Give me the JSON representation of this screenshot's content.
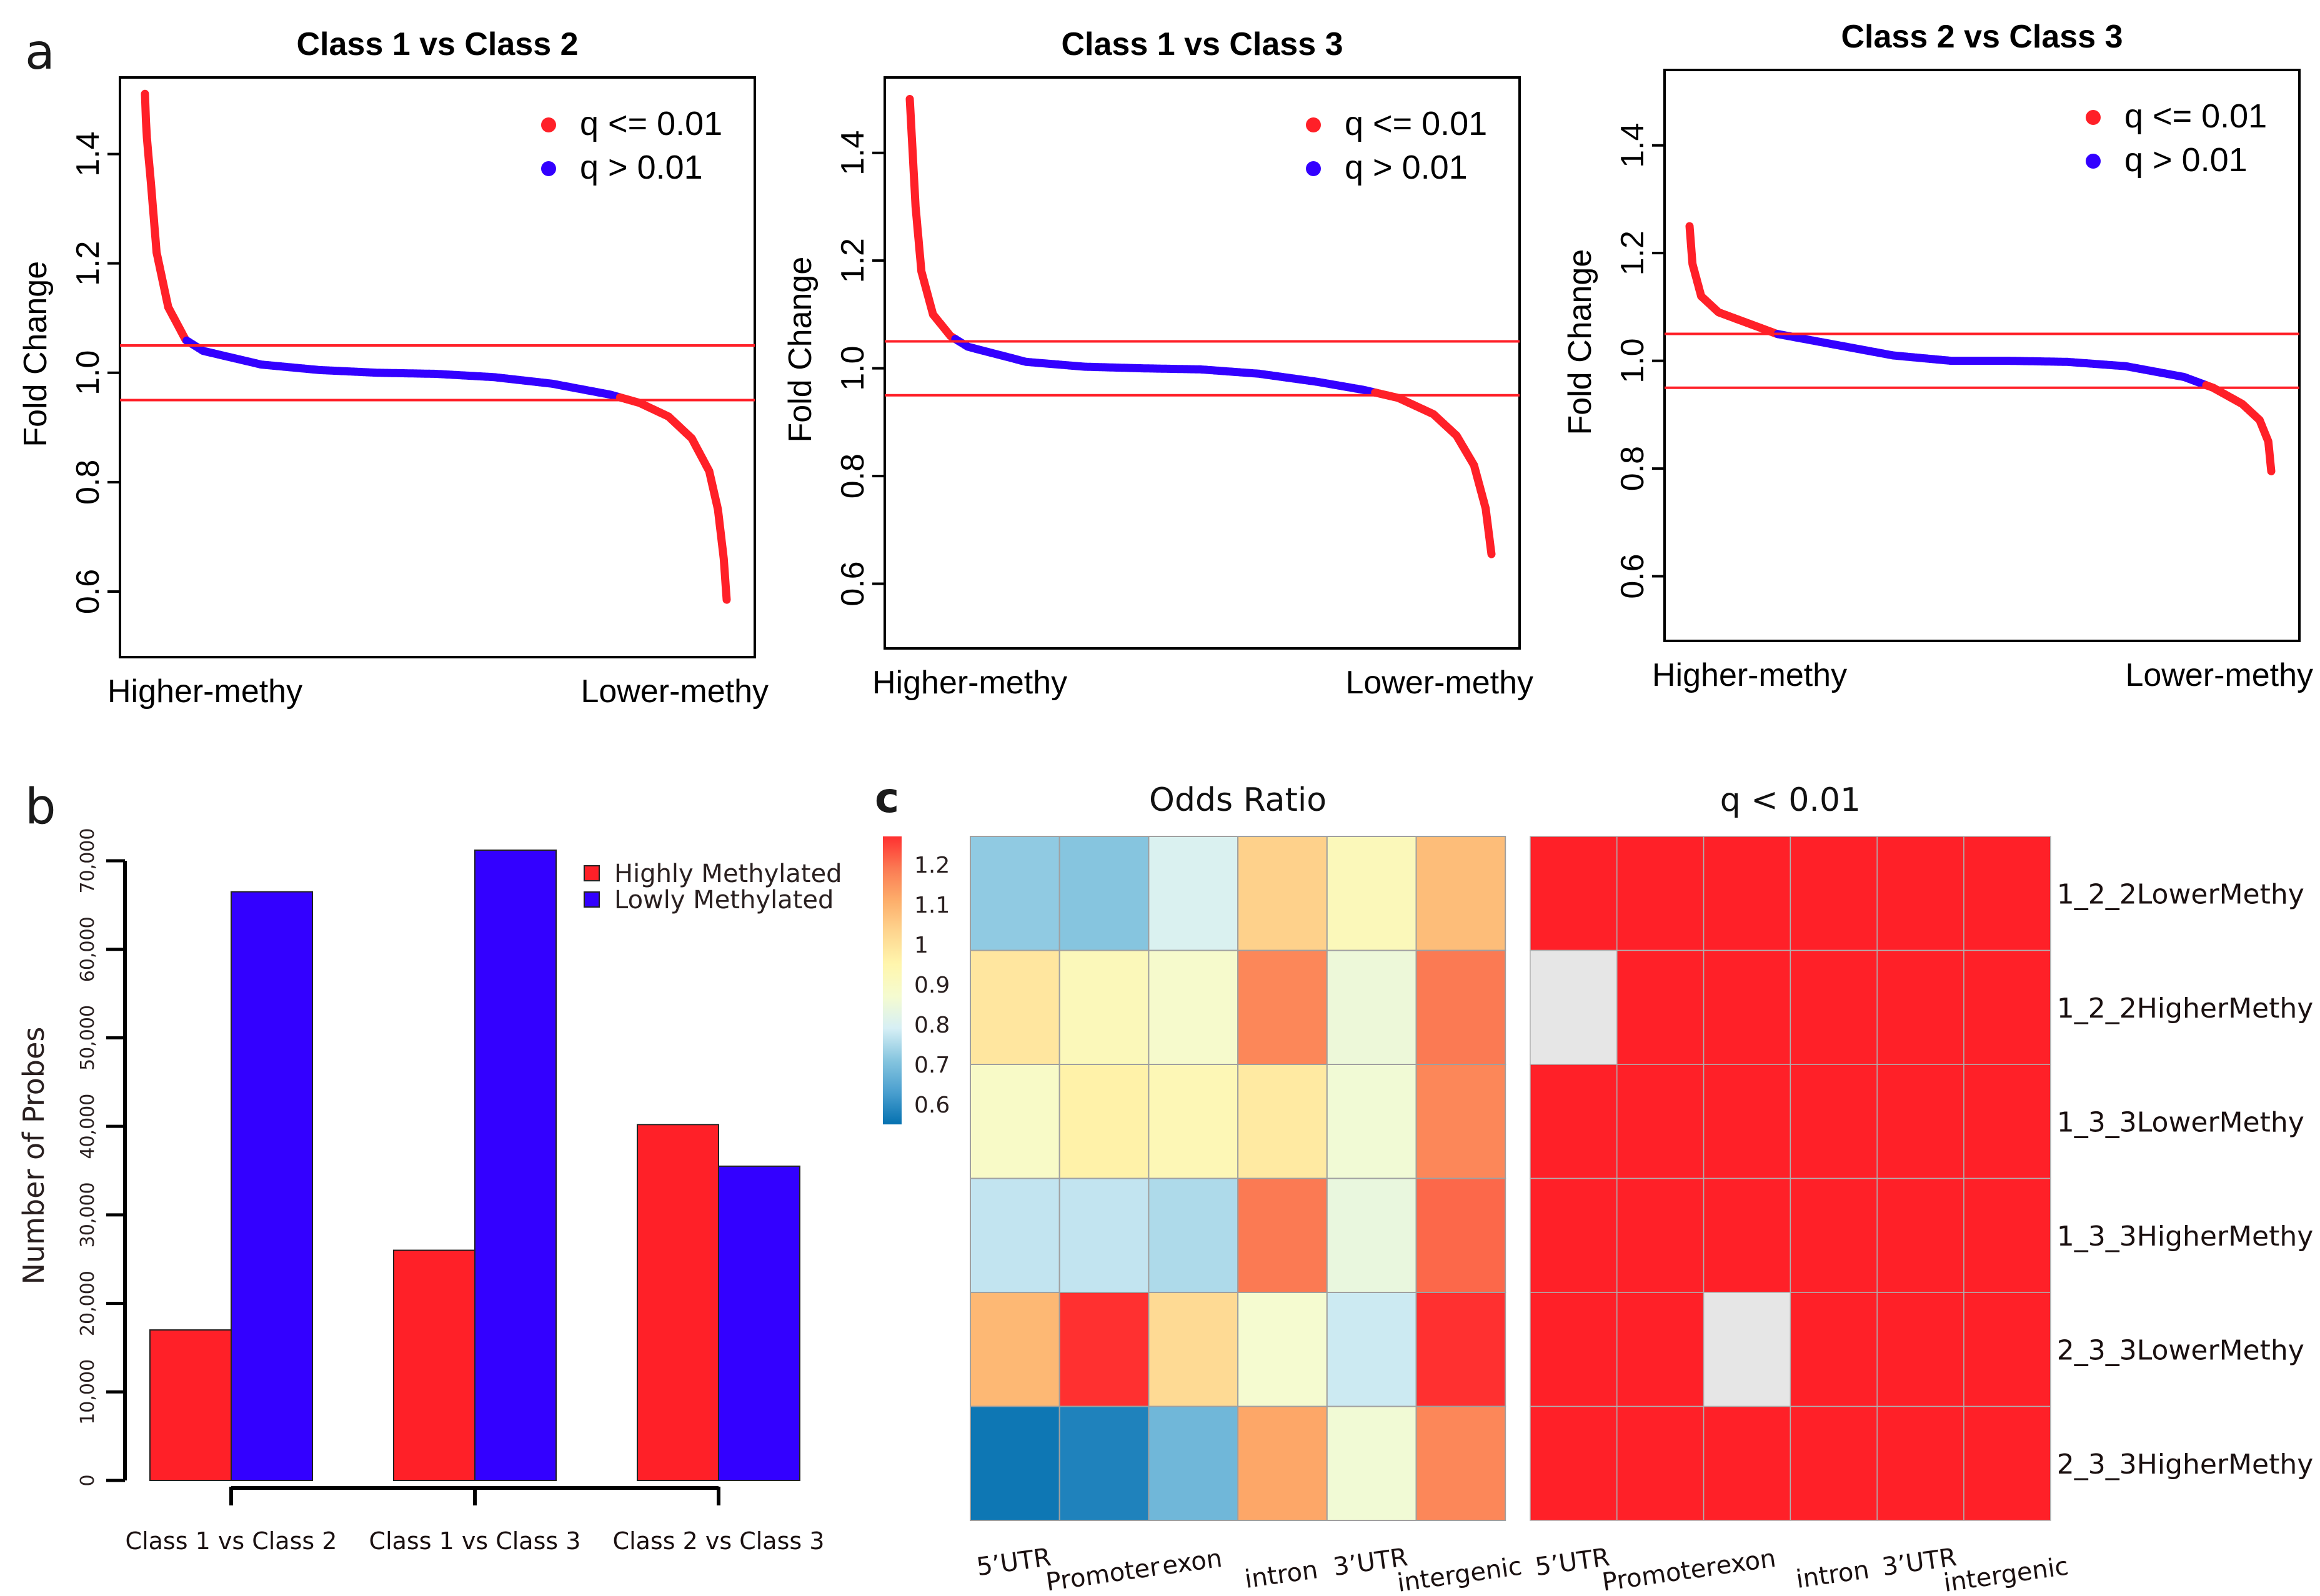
{
  "figure": {
    "panel_labels": {
      "a": "a",
      "b": "b",
      "c": "c"
    }
  },
  "chart_data": [
    {
      "id": "a1",
      "type": "scatter",
      "title": "Class 1 vs Class 2",
      "xlabel": "",
      "ylabel": "Fold Change",
      "x_tick_labels": [
        "Higher-methy",
        "Lower-methy"
      ],
      "y_ticks": [
        0.6,
        0.8,
        1.0,
        1.2,
        1.4
      ],
      "y_tick_labels": [
        "0.6",
        "0.8",
        "1.0",
        "1.2",
        "1.4"
      ],
      "ylim": [
        0.48,
        1.54
      ],
      "reference_lines": [
        1.05,
        0.95
      ],
      "legend": [
        {
          "label": "q <= 0.01",
          "color": "#ff2028"
        },
        {
          "label": "q > 0.01",
          "color": "#3300ff"
        }
      ],
      "legend_position": "top-right",
      "curve": {
        "description": "sorted fold change, higher-methy to lower-methy",
        "points": [
          [
            0.0,
            1.51
          ],
          [
            0.002,
            1.45
          ],
          [
            0.004,
            1.42
          ],
          [
            0.01,
            1.35
          ],
          [
            0.02,
            1.22
          ],
          [
            0.04,
            1.12
          ],
          [
            0.07,
            1.06
          ],
          [
            0.1,
            1.04
          ],
          [
            0.2,
            1.015
          ],
          [
            0.3,
            1.005
          ],
          [
            0.4,
            1.0
          ],
          [
            0.5,
            0.998
          ],
          [
            0.6,
            0.992
          ],
          [
            0.7,
            0.98
          ],
          [
            0.8,
            0.96
          ],
          [
            0.85,
            0.945
          ],
          [
            0.9,
            0.92
          ],
          [
            0.94,
            0.88
          ],
          [
            0.97,
            0.82
          ],
          [
            0.985,
            0.75
          ],
          [
            0.995,
            0.66
          ],
          [
            1.0,
            0.585
          ]
        ],
        "insignificant_range": [
          1.06,
          0.955
        ]
      }
    },
    {
      "id": "a2",
      "type": "scatter",
      "title": "Class 1 vs Class 3",
      "xlabel": "",
      "ylabel": "Fold Change",
      "x_tick_labels": [
        "Higher-methy",
        "Lower-methy"
      ],
      "y_ticks": [
        0.6,
        0.8,
        1.0,
        1.2,
        1.4
      ],
      "y_tick_labels": [
        "0.6",
        "0.8",
        "1.0",
        "1.2",
        "1.4"
      ],
      "ylim": [
        0.48,
        1.54
      ],
      "reference_lines": [
        1.05,
        0.95
      ],
      "legend": [
        {
          "label": "q <= 0.01",
          "color": "#ff2028"
        },
        {
          "label": "q > 0.01",
          "color": "#3300ff"
        }
      ],
      "legend_position": "top-right",
      "curve": {
        "description": "sorted fold change, higher-methy to lower-methy",
        "points": [
          [
            0.0,
            1.5
          ],
          [
            0.002,
            1.46
          ],
          [
            0.004,
            1.42
          ],
          [
            0.01,
            1.3
          ],
          [
            0.02,
            1.18
          ],
          [
            0.04,
            1.1
          ],
          [
            0.07,
            1.06
          ],
          [
            0.1,
            1.04
          ],
          [
            0.2,
            1.012
          ],
          [
            0.3,
            1.003
          ],
          [
            0.4,
            1.0
          ],
          [
            0.5,
            0.998
          ],
          [
            0.6,
            0.99
          ],
          [
            0.7,
            0.975
          ],
          [
            0.78,
            0.96
          ],
          [
            0.84,
            0.945
          ],
          [
            0.9,
            0.915
          ],
          [
            0.94,
            0.875
          ],
          [
            0.97,
            0.82
          ],
          [
            0.99,
            0.74
          ],
          [
            1.0,
            0.655
          ]
        ],
        "insignificant_range": [
          1.055,
          0.955
        ]
      }
    },
    {
      "id": "a3",
      "type": "scatter",
      "title": "Class 2 vs Class 3",
      "xlabel": "",
      "ylabel": "Fold Change",
      "x_tick_labels": [
        "Higher-methy",
        "Lower-methy"
      ],
      "y_ticks": [
        0.6,
        0.8,
        1.0,
        1.2,
        1.4
      ],
      "y_tick_labels": [
        "0.6",
        "0.8",
        "1.0",
        "1.2",
        "1.4"
      ],
      "ylim": [
        0.48,
        1.54
      ],
      "reference_lines": [
        1.05,
        0.95
      ],
      "legend": [
        {
          "label": "q <= 0.01",
          "color": "#ff2028"
        },
        {
          "label": "q > 0.01",
          "color": "#3300ff"
        }
      ],
      "legend_position": "top-right",
      "curve": {
        "description": "sorted fold change, higher-methy to lower-methy",
        "points": [
          [
            0.0,
            1.25
          ],
          [
            0.005,
            1.18
          ],
          [
            0.02,
            1.12
          ],
          [
            0.05,
            1.09
          ],
          [
            0.1,
            1.07
          ],
          [
            0.15,
            1.05
          ],
          [
            0.25,
            1.03
          ],
          [
            0.35,
            1.01
          ],
          [
            0.45,
            1.0
          ],
          [
            0.55,
            1.0
          ],
          [
            0.65,
            0.998
          ],
          [
            0.75,
            0.99
          ],
          [
            0.85,
            0.97
          ],
          [
            0.9,
            0.95
          ],
          [
            0.95,
            0.92
          ],
          [
            0.98,
            0.89
          ],
          [
            0.995,
            0.85
          ],
          [
            1.0,
            0.795
          ]
        ],
        "insignificant_range": [
          1.05,
          0.955
        ]
      }
    },
    {
      "id": "b",
      "type": "bar",
      "title": "",
      "xlabel": "",
      "ylabel": "Number of Probes",
      "categories": [
        "Class 1 vs Class 2",
        "Class 1 vs Class 3",
        "Class 2 vs Class 3"
      ],
      "series": [
        {
          "name": "Highly Methylated",
          "color": "#ff2028",
          "values": [
            17000,
            26000,
            40200
          ]
        },
        {
          "name": "Lowly Methylated",
          "color": "#3300ff",
          "values": [
            66500,
            71200,
            35500
          ]
        }
      ],
      "y_ticks": [
        0,
        10000,
        20000,
        30000,
        40000,
        50000,
        60000,
        70000
      ],
      "y_tick_labels": [
        "0",
        "10,000",
        "20,000",
        "30,000",
        "40,000",
        "50,000",
        "60,000",
        "70,000"
      ],
      "ylim": [
        0,
        70000
      ],
      "legend_position": "top-right",
      "grid": false
    },
    {
      "id": "c1",
      "type": "heatmap",
      "title": "Odds Ratio",
      "columns": [
        "5’UTR",
        "Promoter",
        "exon",
        "intron",
        "3’UTR",
        "intergenic"
      ],
      "rows": [
        "1_2_2LowerMethy",
        "1_2_2HigherMethy",
        "1_3_3LowerMethy",
        "1_3_3HigherMethy",
        "2_3_3LowerMethy",
        "2_3_3HigherMethy"
      ],
      "values": [
        [
          0.72,
          0.71,
          0.8,
          1.04,
          0.92,
          1.08
        ],
        [
          0.99,
          0.92,
          0.88,
          1.17,
          0.85,
          1.19
        ],
        [
          0.89,
          0.96,
          0.93,
          0.98,
          0.86,
          1.17
        ],
        [
          0.77,
          0.77,
          0.75,
          1.19,
          0.84,
          1.21
        ],
        [
          1.09,
          1.27,
          1.02,
          0.87,
          0.78,
          1.27
        ],
        [
          0.56,
          0.58,
          0.68,
          1.12,
          0.86,
          1.17
        ]
      ],
      "colorbar": {
        "ticks": [
          1.2,
          1.1,
          1,
          0.9,
          0.8,
          0.7,
          0.6
        ],
        "tick_labels": [
          "1.2",
          "1.1",
          "1",
          "0.9",
          "0.8",
          "0.7",
          "0.6"
        ],
        "range": [
          0.55,
          1.27
        ],
        "colors": [
          "#0571b0",
          "#4a9fcf",
          "#86c5df",
          "#d6eff5",
          "#f5fbd0",
          "#fff6ad",
          "#fed690",
          "#fdae6b",
          "#fb7a53",
          "#ff3030"
        ]
      }
    },
    {
      "id": "c2",
      "type": "heatmap",
      "title": "q < 0.01",
      "columns": [
        "5’UTR",
        "Promoter",
        "exon",
        "intron",
        "3’UTR",
        "intergenic"
      ],
      "rows": [
        "1_2_2LowerMethy",
        "1_2_2HigherMethy",
        "1_3_3LowerMethy",
        "1_3_3HigherMethy",
        "2_3_3LowerMethy",
        "2_3_3HigherMethy"
      ],
      "values": [
        [
          1,
          1,
          1,
          1,
          1,
          1
        ],
        [
          0,
          1,
          1,
          1,
          1,
          1
        ],
        [
          1,
          1,
          1,
          1,
          1,
          1
        ],
        [
          1,
          1,
          1,
          1,
          1,
          1
        ],
        [
          1,
          1,
          0,
          1,
          1,
          1
        ],
        [
          1,
          1,
          1,
          1,
          1,
          1
        ]
      ],
      "value_meaning": {
        "1": "significant (q < 0.01)",
        "0": "not significant"
      },
      "colors": {
        "1": "#ff2028",
        "0": "#e6e6e6"
      }
    }
  ]
}
